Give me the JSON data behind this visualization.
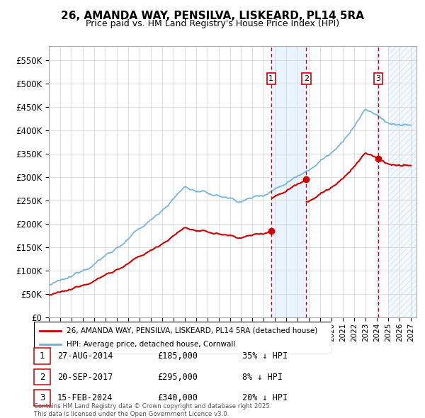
{
  "title": "26, AMANDA WAY, PENSILVA, LISKEARD, PL14 5RA",
  "subtitle": "Price paid vs. HM Land Registry's House Price Index (HPI)",
  "ylim": [
    0,
    580000
  ],
  "yticks": [
    0,
    50000,
    100000,
    150000,
    200000,
    250000,
    300000,
    350000,
    400000,
    450000,
    500000,
    550000
  ],
  "ytick_labels": [
    "£0",
    "£50K",
    "£100K",
    "£150K",
    "£200K",
    "£250K",
    "£300K",
    "£350K",
    "£400K",
    "£450K",
    "£500K",
    "£550K"
  ],
  "xlim_start": 1995.0,
  "xlim_end": 2027.5,
  "background_color": "#ffffff",
  "grid_color": "#d0d0d0",
  "sale1_date": 2014.65,
  "sale1_price": 185000,
  "sale1_label": "1",
  "sale1_text": "27-AUG-2014",
  "sale1_amount": "£185,000",
  "sale1_hpi": "35% ↓ HPI",
  "sale2_date": 2017.75,
  "sale2_price": 295000,
  "sale2_label": "2",
  "sale2_text": "20-SEP-2017",
  "sale2_amount": "£295,000",
  "sale2_hpi": "8% ↓ HPI",
  "sale3_date": 2024.12,
  "sale3_price": 340000,
  "sale3_label": "3",
  "sale3_text": "15-FEB-2024",
  "sale3_amount": "£340,000",
  "sale3_hpi": "20% ↓ HPI",
  "property_color": "#cc0000",
  "hpi_color": "#6baed6",
  "legend_property": "26, AMANDA WAY, PENSILVA, LISKEARD, PL14 5RA (detached house)",
  "legend_hpi": "HPI: Average price, detached house, Cornwall",
  "footnote": "Contains HM Land Registry data © Crown copyright and database right 2025.\nThis data is licensed under the Open Government Licence v3.0."
}
